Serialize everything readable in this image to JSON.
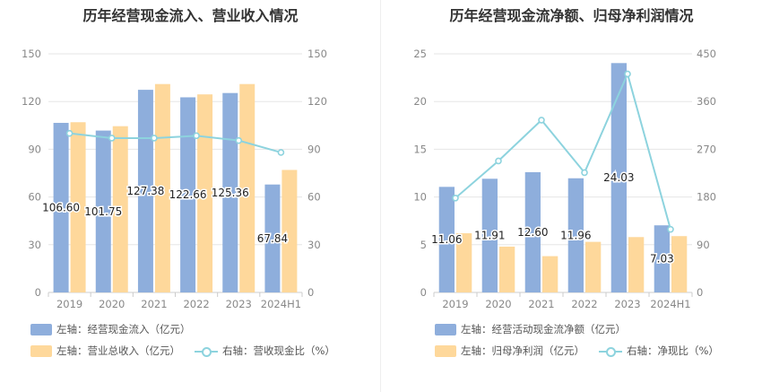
{
  "colors": {
    "bar1": "#8eaedc",
    "bar2": "#fed89b",
    "line": "#8dd3de",
    "grid": "#e6e6e6",
    "axis": "#888888"
  },
  "chart_data": [
    {
      "type": "bar",
      "title": "历年经营现金流入、营业收入情况",
      "categories": [
        "2019",
        "2020",
        "2021",
        "2022",
        "2023",
        "2024H1"
      ],
      "left_axis": {
        "ylim": [
          0,
          150
        ],
        "ticks": [
          0,
          30,
          60,
          90,
          120,
          150
        ]
      },
      "right_axis": {
        "ylim": [
          0,
          150
        ],
        "ticks": [
          0,
          30,
          60,
          90,
          120,
          150
        ]
      },
      "series": [
        {
          "name": "左轴：经营现金流入（亿元）",
          "kind": "bar",
          "axis": "left",
          "values": [
            106.6,
            101.75,
            127.38,
            122.66,
            125.36,
            67.84
          ],
          "labels": [
            "106.60",
            "101.75",
            "127.38",
            "122.66",
            "125.36",
            "67.84"
          ]
        },
        {
          "name": "左轴：营业总收入（亿元）",
          "kind": "bar",
          "axis": "left",
          "values": [
            107,
            104.5,
            131,
            124.5,
            131,
            77
          ]
        },
        {
          "name": "右轴：营收现金比（%）",
          "kind": "line",
          "axis": "right",
          "values": [
            100,
            97,
            97,
            98.5,
            95.5,
            88
          ]
        }
      ]
    },
    {
      "type": "bar",
      "title": "历年经营现金流净额、归母净利润情况",
      "categories": [
        "2019",
        "2020",
        "2021",
        "2022",
        "2023",
        "2024H1"
      ],
      "left_axis": {
        "ylim": [
          0,
          25
        ],
        "ticks": [
          0,
          5,
          10,
          15,
          20,
          25
        ]
      },
      "right_axis": {
        "ylim": [
          0,
          450
        ],
        "ticks": [
          0,
          90,
          180,
          270,
          360,
          450
        ]
      },
      "series": [
        {
          "name": "左轴：经营活动现金流净额（亿元）",
          "kind": "bar",
          "axis": "left",
          "values": [
            11.06,
            11.91,
            12.6,
            11.96,
            24.03,
            7.03
          ],
          "labels": [
            "11.06",
            "11.91",
            "12.60",
            "11.96",
            "24.03",
            "7.03"
          ]
        },
        {
          "name": "左轴：归母净利润（亿元）",
          "kind": "bar",
          "axis": "left",
          "values": [
            6.2,
            4.8,
            3.8,
            5.3,
            5.8,
            5.9
          ]
        },
        {
          "name": "右轴：净现比（%）",
          "kind": "line",
          "axis": "right",
          "values": [
            178,
            248,
            325,
            226,
            412,
            119
          ]
        }
      ]
    }
  ]
}
